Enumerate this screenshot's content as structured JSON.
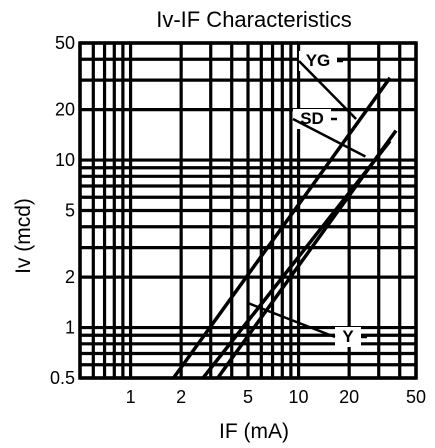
{
  "chart_data": {
    "type": "line",
    "title": "Iv-IF Characteristics",
    "xlabel": "IF (mA)",
    "ylabel": "Iv (mcd)",
    "xscale": "log",
    "yscale": "log",
    "xlim": [
      0.5,
      50
    ],
    "ylim": [
      0.5,
      50
    ],
    "x_ticks": [
      1,
      2,
      5,
      10,
      20,
      50
    ],
    "y_ticks": [
      0.5,
      1,
      2,
      5,
      10,
      20,
      50
    ],
    "grid": true,
    "series": [
      {
        "name": "YG",
        "x": [
          1.8,
          35
        ],
        "y": [
          0.5,
          31
        ]
      },
      {
        "name": "SD",
        "x": [
          3.3,
          38
        ],
        "y": [
          0.5,
          15
        ]
      },
      {
        "name": "Y",
        "x": [
          2.7,
          35
        ],
        "y": [
          0.5,
          13
        ]
      }
    ]
  }
}
